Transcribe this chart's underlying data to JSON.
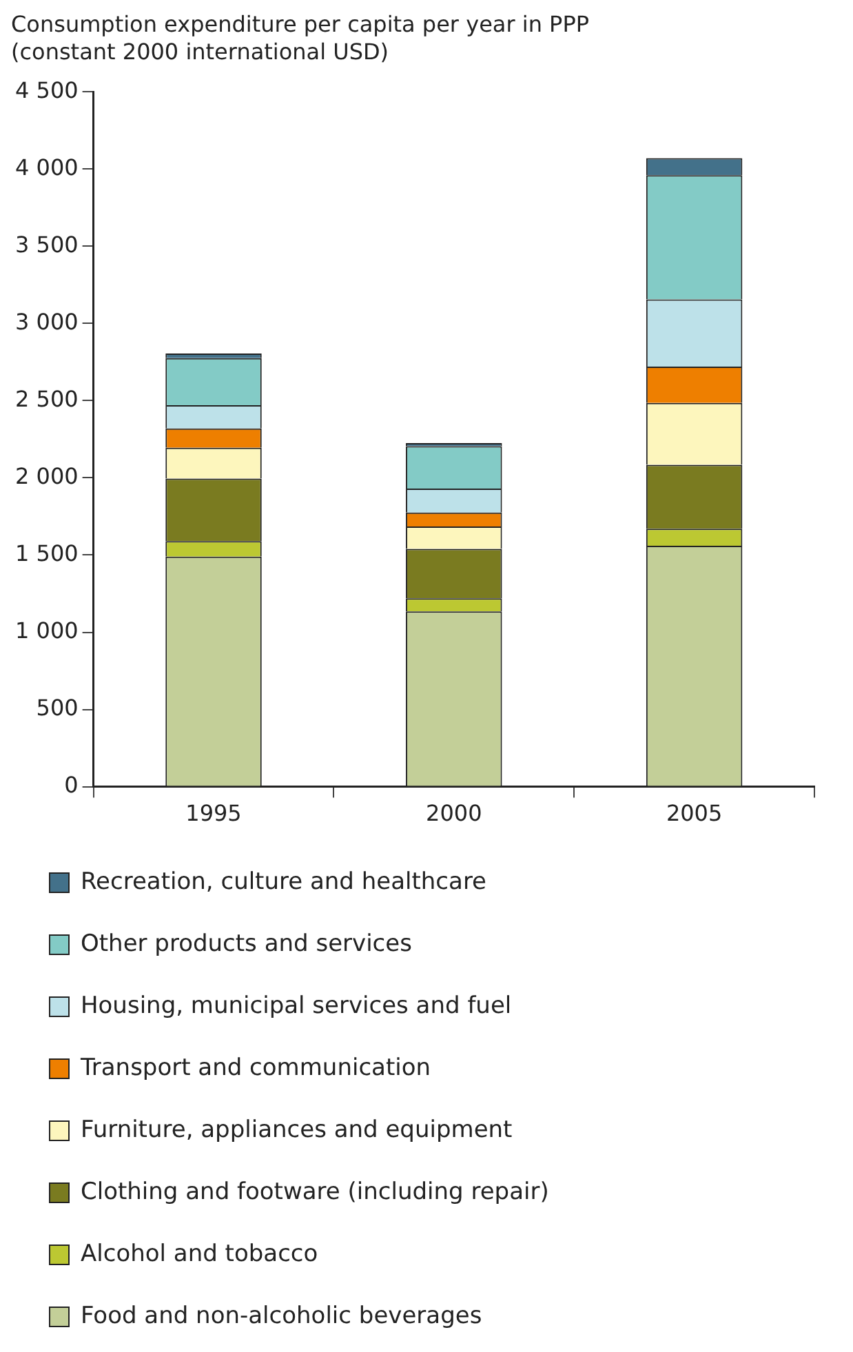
{
  "chart_data": {
    "type": "bar",
    "stacked": true,
    "ylabel": "Consumption expenditure per capita per year in PPP (constant 2000 international USD)",
    "categories": [
      "1995",
      "2000",
      "2005"
    ],
    "series": [
      {
        "name": "Food and non-alcoholic beverages",
        "color": "#c3cf98",
        "values": [
          1490,
          1135,
          1560
        ]
      },
      {
        "name": "Alcohol and tobacco",
        "color": "#bcc832",
        "values": [
          100,
          85,
          110
        ]
      },
      {
        "name": "Clothing and footware (including repair)",
        "color": "#7a7b20",
        "values": [
          405,
          320,
          415
        ]
      },
      {
        "name": "Furniture, appliances and equipment",
        "color": "#fdf6bd",
        "values": [
          200,
          145,
          400
        ]
      },
      {
        "name": "Transport and communication",
        "color": "#ee7f00",
        "values": [
          125,
          90,
          235
        ]
      },
      {
        "name": "Housing, municipal services and fuel",
        "color": "#bde1e9",
        "values": [
          150,
          155,
          435
        ]
      },
      {
        "name": "Other products and services",
        "color": "#83cbc6",
        "values": [
          305,
          275,
          805
        ]
      },
      {
        "name": "Recreation, culture and healthcare",
        "color": "#43718a",
        "values": [
          30,
          20,
          110
        ]
      }
    ],
    "ylim": [
      0,
      4500
    ],
    "yticks": [
      0,
      500,
      {
        "value": 1000,
        "label": "1 000"
      },
      {
        "value": 1500,
        "label": "1 500"
      },
      {
        "value": 2000,
        "label": "2 000"
      },
      {
        "value": 2500,
        "label": "2 500"
      },
      {
        "value": 3000,
        "label": "3 000"
      },
      {
        "value": 3500,
        "label": "3 500"
      },
      {
        "value": 4000,
        "label": "4 000"
      },
      {
        "value": 4500,
        "label": "4 500"
      }
    ],
    "grid": false,
    "legend": "bottom"
  }
}
